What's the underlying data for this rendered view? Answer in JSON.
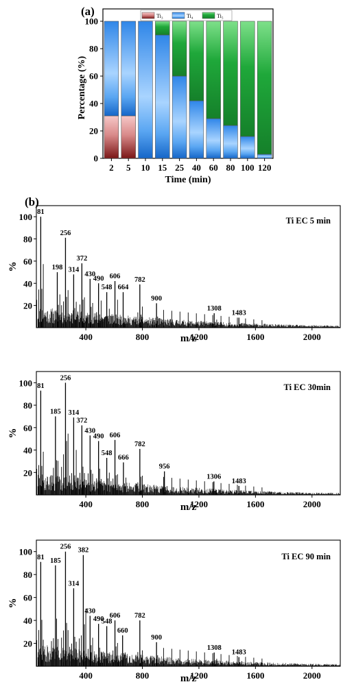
{
  "figure": {
    "panel_a_label": "(a)",
    "panel_b_label": "(b)"
  },
  "chart_data": [
    {
      "type": "bar",
      "stacked": true,
      "title": "",
      "xlabel": "Time (min)",
      "ylabel": "Percentage (%)",
      "ylim": [
        0,
        100
      ],
      "yticks": [
        0,
        20,
        40,
        60,
        80,
        100
      ],
      "categories": [
        "2",
        "5",
        "10",
        "15",
        "25",
        "40",
        "60",
        "80",
        "100",
        "120"
      ],
      "legend": {
        "placement": "top-center"
      },
      "series": [
        {
          "name": "Ti₃",
          "color": "#a52a2a",
          "values": [
            31,
            31,
            0,
            0,
            0,
            0,
            0,
            0,
            0,
            0
          ]
        },
        {
          "name": "Ti₄",
          "color": "#1e6fd9",
          "values": [
            69,
            69,
            100,
            90,
            60,
            42,
            29,
            24,
            16,
            3
          ]
        },
        {
          "name": "Ti₅",
          "color": "#1aa33a",
          "values": [
            0,
            0,
            0,
            10,
            40,
            58,
            71,
            76,
            84,
            97
          ]
        }
      ]
    },
    {
      "type": "line",
      "title": "Ti EC 5 min",
      "xlabel": "m/z",
      "ylabel": "%",
      "xlim": [
        50,
        2200
      ],
      "ylim": [
        0,
        110
      ],
      "xticks": [
        400,
        800,
        1200,
        1600,
        2000
      ],
      "yticks": [
        20,
        40,
        60,
        80,
        100
      ],
      "peaks": [
        {
          "x": 81,
          "y": 100,
          "label": "81"
        },
        {
          "x": 198,
          "y": 50,
          "label": "198"
        },
        {
          "x": 256,
          "y": 81,
          "label": "256"
        },
        {
          "x": 314,
          "y": 48,
          "label": "314"
        },
        {
          "x": 372,
          "y": 58,
          "label": "372"
        },
        {
          "x": 430,
          "y": 44,
          "label": "430"
        },
        {
          "x": 490,
          "y": 40,
          "label": "490"
        },
        {
          "x": 548,
          "y": 32,
          "label": "548"
        },
        {
          "x": 606,
          "y": 42,
          "label": "606"
        },
        {
          "x": 664,
          "y": 32,
          "label": "664"
        },
        {
          "x": 782,
          "y": 39,
          "label": "782"
        },
        {
          "x": 900,
          "y": 22,
          "label": "900"
        },
        {
          "x": 1308,
          "y": 13,
          "label": "1308"
        },
        {
          "x": 1483,
          "y": 9,
          "label": "1483"
        }
      ]
    },
    {
      "type": "line",
      "title": "Ti EC 30min",
      "xlabel": "m/z",
      "ylabel": "%",
      "xlim": [
        50,
        2200
      ],
      "ylim": [
        0,
        110
      ],
      "xticks": [
        400,
        800,
        1200,
        1600,
        2000
      ],
      "yticks": [
        20,
        40,
        60,
        80,
        100
      ],
      "peaks": [
        {
          "x": 81,
          "y": 93,
          "label": "81"
        },
        {
          "x": 185,
          "y": 70,
          "label": "185"
        },
        {
          "x": 256,
          "y": 100,
          "label": "256"
        },
        {
          "x": 314,
          "y": 69,
          "label": "314"
        },
        {
          "x": 372,
          "y": 62,
          "label": "372"
        },
        {
          "x": 430,
          "y": 53,
          "label": "430"
        },
        {
          "x": 490,
          "y": 48,
          "label": "490"
        },
        {
          "x": 548,
          "y": 33,
          "label": "548"
        },
        {
          "x": 606,
          "y": 49,
          "label": "606"
        },
        {
          "x": 666,
          "y": 29,
          "label": "666"
        },
        {
          "x": 782,
          "y": 41,
          "label": "782"
        },
        {
          "x": 956,
          "y": 21,
          "label": "956"
        },
        {
          "x": 1306,
          "y": 12,
          "label": "1306"
        },
        {
          "x": 1483,
          "y": 8,
          "label": "1483"
        }
      ]
    },
    {
      "type": "line",
      "title": "Ti EC 90 min",
      "xlabel": "m/z",
      "ylabel": "%",
      "xlim": [
        50,
        2200
      ],
      "ylim": [
        0,
        110
      ],
      "xticks": [
        400,
        800,
        1200,
        1600,
        2000
      ],
      "yticks": [
        20,
        40,
        60,
        80,
        100
      ],
      "peaks": [
        {
          "x": 81,
          "y": 91,
          "label": "81"
        },
        {
          "x": 185,
          "y": 88,
          "label": "185"
        },
        {
          "x": 256,
          "y": 100,
          "label": "256"
        },
        {
          "x": 314,
          "y": 68,
          "label": "314"
        },
        {
          "x": 382,
          "y": 97,
          "label": "382"
        },
        {
          "x": 430,
          "y": 44,
          "label": "430"
        },
        {
          "x": 490,
          "y": 37,
          "label": "490"
        },
        {
          "x": 548,
          "y": 35,
          "label": "548"
        },
        {
          "x": 606,
          "y": 40,
          "label": "606"
        },
        {
          "x": 660,
          "y": 27,
          "label": "660"
        },
        {
          "x": 782,
          "y": 40,
          "label": "782"
        },
        {
          "x": 900,
          "y": 21,
          "label": "900"
        },
        {
          "x": 1308,
          "y": 12,
          "label": "1308"
        },
        {
          "x": 1483,
          "y": 8,
          "label": "1483"
        }
      ]
    }
  ]
}
